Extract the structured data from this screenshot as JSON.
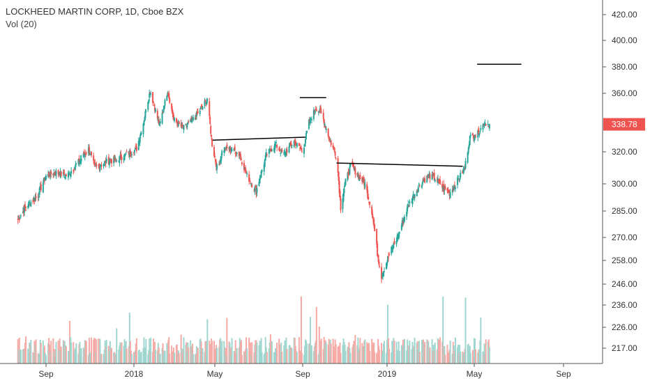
{
  "header": {
    "title": "LOCKHEED MARTIN CORP, 1D, Cboe BZX",
    "volume_label": "Vol (20)"
  },
  "colors": {
    "up": "#26a69a",
    "down": "#ef5350",
    "vol_up": "#9fd6cf",
    "vol_down": "#f5aaa6",
    "price_badge": "#ef5350",
    "trendline": "#000000",
    "axis_text": "#333333",
    "axis_line": "#555555"
  },
  "chart_data": {
    "type": "candlestick",
    "title": "LOCKHEED MARTIN CORP, 1D, Cboe BZX",
    "y_axis_side": "right",
    "y_ticks": [
      420,
      400,
      380,
      360,
      338.78,
      320,
      300,
      285,
      270,
      258,
      246,
      236,
      226,
      217
    ],
    "x_ticks": [
      "Sep",
      "2018",
      "May",
      "Sep",
      "2019",
      "May",
      "Sep"
    ],
    "last_price": "338.78",
    "grid": false,
    "price_path": [
      [
        "2017-07-24",
        280
      ],
      [
        "2017-08-05",
        288
      ],
      [
        "2017-08-20",
        293
      ],
      [
        "2017-09-01",
        305
      ],
      [
        "2017-09-15",
        307
      ],
      [
        "2017-09-30",
        305
      ],
      [
        "2017-10-15",
        313
      ],
      [
        "2017-10-30",
        322
      ],
      [
        "2017-11-08",
        310
      ],
      [
        "2017-11-25",
        314
      ],
      [
        "2017-12-08",
        315
      ],
      [
        "2017-12-20",
        318
      ],
      [
        "2018-01-05",
        322
      ],
      [
        "2018-01-15",
        340
      ],
      [
        "2018-01-25",
        362
      ],
      [
        "2018-02-08",
        338
      ],
      [
        "2018-02-20",
        362
      ],
      [
        "2018-03-01",
        342
      ],
      [
        "2018-03-15",
        336
      ],
      [
        "2018-04-01",
        343
      ],
      [
        "2018-04-20",
        356
      ],
      [
        "2018-04-27",
        325
      ],
      [
        "2018-05-05",
        308
      ],
      [
        "2018-05-12",
        322
      ],
      [
        "2018-05-25",
        322
      ],
      [
        "2018-06-05",
        318
      ],
      [
        "2018-06-15",
        305
      ],
      [
        "2018-06-28",
        296
      ],
      [
        "2018-07-12",
        318
      ],
      [
        "2018-07-25",
        325
      ],
      [
        "2018-08-05",
        318
      ],
      [
        "2018-08-20",
        327
      ],
      [
        "2018-09-01",
        320
      ],
      [
        "2018-09-10",
        340
      ],
      [
        "2018-09-20",
        350
      ],
      [
        "2018-09-28",
        347
      ],
      [
        "2018-10-10",
        328
      ],
      [
        "2018-10-20",
        317
      ],
      [
        "2018-10-26",
        287
      ],
      [
        "2018-11-01",
        300
      ],
      [
        "2018-11-10",
        312
      ],
      [
        "2018-11-20",
        305
      ],
      [
        "2018-11-30",
        300
      ],
      [
        "2018-12-10",
        285
      ],
      [
        "2018-12-18",
        262
      ],
      [
        "2018-12-24",
        250
      ],
      [
        "2019-01-05",
        262
      ],
      [
        "2019-01-15",
        270
      ],
      [
        "2019-01-30",
        288
      ],
      [
        "2019-02-15",
        300
      ],
      [
        "2019-02-28",
        305
      ],
      [
        "2019-03-10",
        303
      ],
      [
        "2019-03-20",
        297
      ],
      [
        "2019-03-28",
        295
      ],
      [
        "2019-04-08",
        302
      ],
      [
        "2019-04-18",
        310
      ],
      [
        "2019-04-25",
        330
      ],
      [
        "2019-05-05",
        332
      ],
      [
        "2019-05-15",
        340
      ],
      [
        "2019-05-22",
        338.78
      ]
    ],
    "volume_scale": "relative",
    "trendlines": [
      {
        "from": [
          "2018-04-28",
          328
        ],
        "to": [
          "2018-09-05",
          330
        ]
      },
      {
        "from": [
          "2018-08-28",
          357
        ],
        "to": [
          "2018-10-05",
          357
        ]
      },
      {
        "from": [
          "2018-10-20",
          313
        ],
        "to": [
          "2019-04-15",
          311
        ]
      },
      {
        "from": [
          "2019-05-05",
          382
        ],
        "to": [
          "2019-07-05",
          382
        ]
      }
    ]
  }
}
